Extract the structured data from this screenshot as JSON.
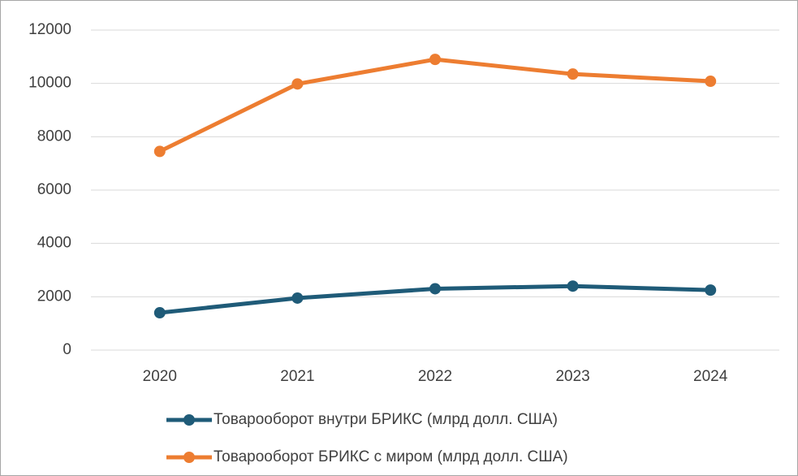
{
  "chart_data": {
    "type": "line",
    "categories": [
      "2020",
      "2021",
      "2022",
      "2023",
      "2024"
    ],
    "series": [
      {
        "name": "Товарооборот внутри БРИКС (млрд долл. США)",
        "color": "#1f5b78",
        "values": [
          1400,
          1950,
          2300,
          2400,
          2250
        ]
      },
      {
        "name": "Товарооборот БРИКС с миром (млрд долл. США)",
        "color": "#ed7d31",
        "values": [
          7450,
          9980,
          10900,
          10350,
          10080
        ]
      }
    ],
    "ylim": [
      0,
      12000
    ],
    "yticks": [
      0,
      2000,
      4000,
      6000,
      8000,
      10000,
      12000
    ],
    "grid": true,
    "legend": "bottom"
  }
}
